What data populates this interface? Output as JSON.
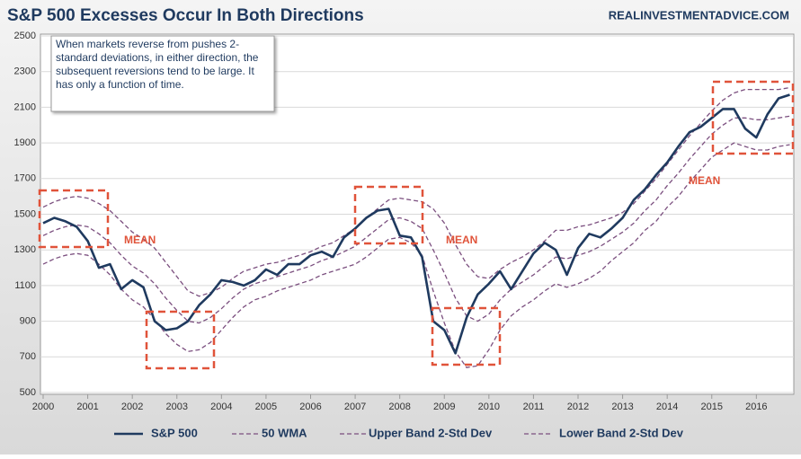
{
  "chart_data": {
    "type": "line",
    "title": "S&P 500 Excesses Occur In Both Directions",
    "source": "REALINVESTMENTADVICE.COM",
    "annotation": "When markets reverse from pushes 2-standard deviations, in either direction, the subsequent reversions tend to be large.  It has only a function of time.",
    "mean_labels": [
      "MEAN",
      "MEAN",
      "MEAN"
    ],
    "x": [
      2000,
      2000.25,
      2000.5,
      2000.75,
      2001,
      2001.25,
      2001.5,
      2001.75,
      2002,
      2002.25,
      2002.5,
      2002.75,
      2003,
      2003.25,
      2003.5,
      2003.75,
      2004,
      2004.25,
      2004.5,
      2004.75,
      2005,
      2005.25,
      2005.5,
      2005.75,
      2006,
      2006.25,
      2006.5,
      2006.75,
      2007,
      2007.25,
      2007.5,
      2007.75,
      2008,
      2008.25,
      2008.5,
      2008.75,
      2009,
      2009.25,
      2009.5,
      2009.75,
      2010,
      2010.25,
      2010.5,
      2010.75,
      2011,
      2011.25,
      2011.5,
      2011.75,
      2012,
      2012.25,
      2012.5,
      2012.75,
      2013,
      2013.25,
      2013.5,
      2013.75,
      2014,
      2014.25,
      2014.5,
      2014.75,
      2015,
      2015.25,
      2015.5,
      2015.75,
      2016,
      2016.25,
      2016.5,
      2016.75
    ],
    "series": [
      {
        "name": "S&P 500",
        "color": "#1f3a5f",
        "line_style": "solid",
        "values": [
          1450,
          1480,
          1460,
          1430,
          1350,
          1200,
          1220,
          1080,
          1130,
          1090,
          900,
          850,
          860,
          900,
          990,
          1050,
          1130,
          1120,
          1100,
          1130,
          1190,
          1160,
          1220,
          1220,
          1270,
          1290,
          1260,
          1370,
          1420,
          1480,
          1520,
          1530,
          1380,
          1370,
          1260,
          900,
          850,
          720,
          920,
          1050,
          1110,
          1180,
          1080,
          1180,
          1280,
          1340,
          1300,
          1160,
          1310,
          1390,
          1370,
          1420,
          1480,
          1580,
          1640,
          1720,
          1790,
          1880,
          1960,
          1990,
          2040,
          2090,
          2090,
          1980,
          1930,
          2060,
          2150,
          2170
        ]
      },
      {
        "name": "50 WMA",
        "color": "#7b4f7f",
        "line_style": "dashed",
        "values": [
          1380,
          1410,
          1430,
          1440,
          1430,
          1390,
          1340,
          1270,
          1210,
          1170,
          1110,
          1030,
          960,
          900,
          890,
          920,
          970,
          1030,
          1080,
          1110,
          1130,
          1150,
          1170,
          1190,
          1210,
          1240,
          1260,
          1290,
          1320,
          1370,
          1420,
          1470,
          1480,
          1460,
          1420,
          1300,
          1170,
          1030,
          930,
          900,
          940,
          1020,
          1080,
          1120,
          1160,
          1210,
          1260,
          1250,
          1270,
          1290,
          1320,
          1360,
          1400,
          1450,
          1520,
          1580,
          1660,
          1730,
          1810,
          1880,
          1950,
          2000,
          2040,
          2040,
          2030,
          2030,
          2040,
          2050
        ]
      },
      {
        "name": "Upper Band 2-Std Dev",
        "color": "#7b4f7f",
        "line_style": "dashed",
        "values": [
          1540,
          1570,
          1590,
          1600,
          1590,
          1560,
          1520,
          1460,
          1400,
          1360,
          1310,
          1230,
          1150,
          1070,
          1040,
          1060,
          1090,
          1140,
          1180,
          1200,
          1220,
          1230,
          1250,
          1270,
          1290,
          1320,
          1340,
          1380,
          1420,
          1480,
          1530,
          1580,
          1590,
          1580,
          1570,
          1530,
          1450,
          1330,
          1220,
          1150,
          1140,
          1190,
          1230,
          1260,
          1300,
          1350,
          1410,
          1410,
          1430,
          1440,
          1460,
          1480,
          1510,
          1560,
          1630,
          1700,
          1780,
          1860,
          1940,
          2010,
          2080,
          2140,
          2180,
          2200,
          2200,
          2200,
          2200,
          2210
        ]
      },
      {
        "name": "Lower Band 2-Std Dev",
        "color": "#7b4f7f",
        "line_style": "dashed",
        "values": [
          1220,
          1250,
          1270,
          1280,
          1270,
          1220,
          1160,
          1080,
          1020,
          980,
          910,
          830,
          770,
          730,
          740,
          780,
          850,
          920,
          980,
          1020,
          1040,
          1070,
          1090,
          1110,
          1130,
          1160,
          1180,
          1200,
          1220,
          1260,
          1310,
          1360,
          1370,
          1340,
          1270,
          1070,
          890,
          730,
          640,
          650,
          740,
          850,
          930,
          980,
          1020,
          1070,
          1110,
          1090,
          1110,
          1140,
          1180,
          1240,
          1290,
          1340,
          1410,
          1460,
          1540,
          1600,
          1680,
          1750,
          1820,
          1860,
          1900,
          1880,
          1860,
          1860,
          1880,
          1890
        ]
      }
    ],
    "xlim": [
      2000,
      2016.8
    ],
    "xticks": [
      2000,
      2001,
      2002,
      2003,
      2004,
      2005,
      2006,
      2007,
      2008,
      2009,
      2010,
      2011,
      2012,
      2013,
      2014,
      2015,
      2016
    ],
    "ylim": [
      500,
      2500
    ],
    "yticks": [
      500,
      700,
      900,
      1100,
      1300,
      1500,
      1700,
      1900,
      2100,
      2300,
      2500
    ],
    "grid": true,
    "legend": "bottom"
  }
}
